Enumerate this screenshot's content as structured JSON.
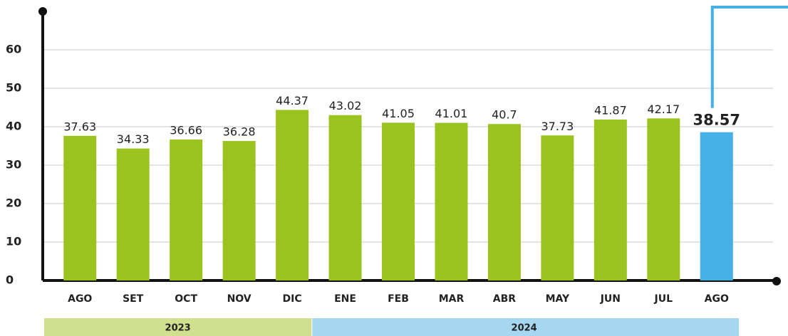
{
  "chart_data": {
    "type": "bar",
    "categories": [
      "AGO",
      "SET",
      "OCT",
      "NOV",
      "DIC",
      "ENE",
      "FEB",
      "MAR",
      "ABR",
      "MAY",
      "JUN",
      "JUL",
      "AGO"
    ],
    "values": [
      37.63,
      34.33,
      36.66,
      36.28,
      44.37,
      43.02,
      41.05,
      41.01,
      40.7,
      37.73,
      41.87,
      42.17,
      38.57
    ],
    "color": "#9bc320",
    "highlight": {
      "index": 12,
      "color": "#45b0e5"
    },
    "groups": [
      {
        "name": "2023",
        "count": 5,
        "color": "#d1e08f"
      },
      {
        "name": "2024",
        "count": 8,
        "color": "#a6d7f1"
      }
    ],
    "ylim": [
      0,
      70
    ],
    "yticks": [
      0,
      10,
      20,
      30,
      40,
      50,
      60
    ],
    "grid": true
  }
}
